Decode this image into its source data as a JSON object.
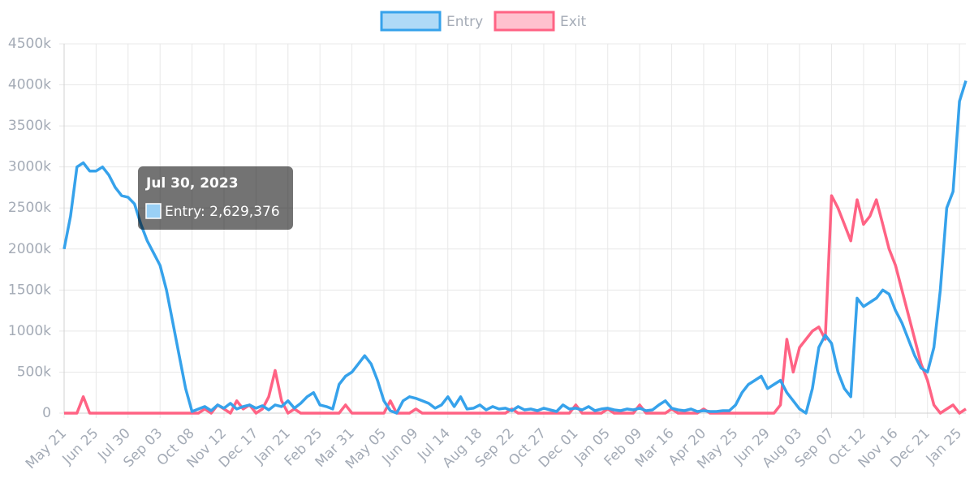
{
  "chart_data": {
    "type": "line",
    "categories": [
      "May 21",
      null,
      null,
      null,
      null,
      "Jun 25",
      null,
      null,
      null,
      null,
      "Jul 30",
      null,
      null,
      null,
      null,
      "Sep 03",
      null,
      null,
      null,
      null,
      "Oct 08",
      null,
      null,
      null,
      null,
      "Nov 12",
      null,
      null,
      null,
      null,
      "Dec 17",
      null,
      null,
      null,
      null,
      "Jan 21",
      null,
      null,
      null,
      null,
      "Feb 25",
      null,
      null,
      null,
      null,
      "Mar 31",
      null,
      null,
      null,
      null,
      "May 05",
      null,
      null,
      null,
      null,
      "Jun 09",
      null,
      null,
      null,
      null,
      "Jul 14",
      null,
      null,
      null,
      null,
      "Aug 18",
      null,
      null,
      null,
      null,
      "Sep 22",
      null,
      null,
      null,
      null,
      "Oct 27",
      null,
      null,
      null,
      null,
      "Dec 01",
      null,
      null,
      null,
      null,
      "Jan 05",
      null,
      null,
      null,
      null,
      "Feb 09",
      null,
      null,
      null,
      null,
      "Mar 16",
      null,
      null,
      null,
      null,
      "Apr 20",
      null,
      null,
      null,
      null,
      "May 25",
      null,
      null,
      null,
      null,
      "Jun 29",
      null,
      null,
      null,
      null,
      "Aug 03",
      null,
      null,
      null,
      null,
      "Sep 07",
      null,
      null,
      null,
      null,
      "Oct 12",
      null,
      null,
      null,
      null,
      "Nov 16",
      null,
      null,
      null,
      null,
      "Dec 21",
      null,
      null,
      null,
      null,
      "Jan 25",
      null
    ],
    "series": [
      {
        "name": "Entry",
        "color": "#36a2eb",
        "values": [
          2000000,
          2400000,
          3000000,
          3050000,
          2950000,
          2950000,
          3000000,
          2900000,
          2750000,
          2650000,
          2629376,
          2550000,
          2300000,
          2100000,
          1950000,
          1800000,
          1500000,
          1100000,
          700000,
          300000,
          20000,
          50000,
          80000,
          30000,
          100000,
          60000,
          120000,
          50000,
          80000,
          100000,
          60000,
          90000,
          40000,
          100000,
          80000,
          150000,
          60000,
          120000,
          200000,
          250000,
          100000,
          80000,
          50000,
          350000,
          450000,
          500000,
          600000,
          700000,
          600000,
          400000,
          150000,
          30000,
          0,
          150000,
          200000,
          180000,
          150000,
          120000,
          60000,
          100000,
          200000,
          80000,
          200000,
          50000,
          60000,
          100000,
          40000,
          80000,
          50000,
          60000,
          30000,
          80000,
          40000,
          50000,
          30000,
          60000,
          40000,
          20000,
          100000,
          50000,
          60000,
          40000,
          80000,
          30000,
          50000,
          60000,
          40000,
          30000,
          50000,
          40000,
          60000,
          30000,
          40000,
          100000,
          150000,
          60000,
          40000,
          30000,
          50000,
          20000,
          30000,
          20000,
          20000,
          30000,
          30000,
          100000,
          250000,
          350000,
          400000,
          450000,
          300000,
          350000,
          400000,
          250000,
          150000,
          50000,
          0,
          300000,
          800000,
          950000,
          850000,
          500000,
          300000,
          200000,
          1400000,
          1300000,
          1350000,
          1400000,
          1500000,
          1450000,
          1250000,
          1100000,
          900000,
          700000,
          550000,
          500000,
          800000,
          1500000,
          2500000,
          2700000,
          3800000,
          4050000
        ]
      },
      {
        "name": "Exit",
        "color": "#ff6384",
        "values": [
          0,
          0,
          0,
          200000,
          0,
          0,
          0,
          0,
          0,
          0,
          0,
          0,
          0,
          0,
          0,
          0,
          0,
          0,
          0,
          0,
          0,
          0,
          50000,
          0,
          100000,
          50000,
          0,
          150000,
          50000,
          100000,
          0,
          50000,
          200000,
          520000,
          150000,
          0,
          50000,
          0,
          0,
          0,
          0,
          0,
          0,
          0,
          100000,
          0,
          0,
          0,
          0,
          0,
          0,
          150000,
          0,
          0,
          0,
          50000,
          0,
          0,
          0,
          0,
          0,
          0,
          0,
          0,
          0,
          0,
          0,
          0,
          0,
          0,
          50000,
          0,
          0,
          0,
          0,
          0,
          0,
          0,
          0,
          0,
          100000,
          0,
          0,
          0,
          0,
          50000,
          0,
          0,
          0,
          0,
          100000,
          0,
          0,
          0,
          0,
          50000,
          0,
          0,
          0,
          0,
          50000,
          0,
          0,
          0,
          0,
          0,
          0,
          0,
          0,
          0,
          0,
          0,
          100000,
          900000,
          500000,
          800000,
          900000,
          1000000,
          1050000,
          900000,
          2650000,
          2500000,
          2300000,
          2100000,
          2600000,
          2300000,
          2400000,
          2600000,
          2300000,
          2000000,
          1800000,
          1500000,
          1200000,
          900000,
          600000,
          400000,
          100000,
          0,
          50000,
          100000,
          0,
          50000
        ]
      }
    ],
    "ylim": [
      0,
      4500000
    ],
    "yticks": [
      0,
      {
        "value": 500000,
        "label": "500k"
      },
      {
        "value": 1000000,
        "label": "1000k"
      },
      {
        "value": 1500000,
        "label": "1500k"
      },
      {
        "value": 2000000,
        "label": "2000k"
      },
      {
        "value": 2500000,
        "label": "2500k"
      },
      {
        "value": 3000000,
        "label": "3000k"
      },
      {
        "value": 3500000,
        "label": "3500k"
      },
      {
        "value": 4000000,
        "label": "4000k"
      },
      {
        "value": 4500000,
        "label": "4500k"
      }
    ],
    "grid": true,
    "legend": "top",
    "tooltip": {
      "title": "Jul 30, 2023",
      "text": "Entry: 2,629,376"
    }
  }
}
